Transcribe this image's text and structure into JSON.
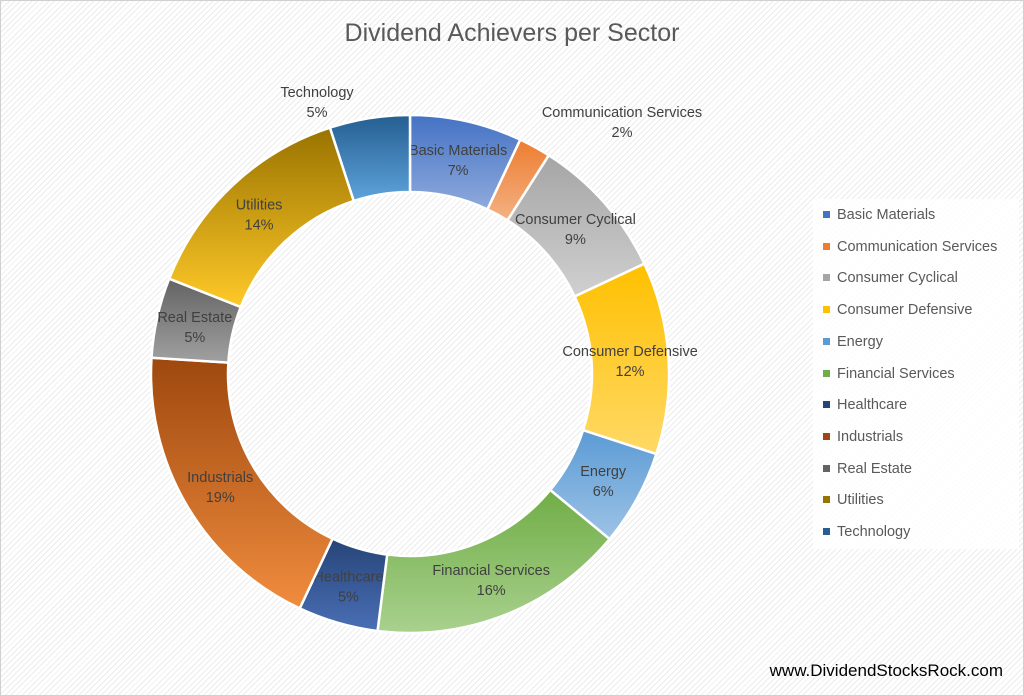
{
  "chart_data": {
    "type": "pie",
    "variant": "donut",
    "title": "Dividend Achievers per Sector",
    "categories": [
      "Basic Materials",
      "Communication Services",
      "Consumer Cyclical",
      "Consumer Defensive",
      "Energy",
      "Financial Services",
      "Healthcare",
      "Industrials",
      "Real Estate",
      "Utilities",
      "Technology"
    ],
    "values": [
      7,
      2,
      9,
      12,
      6,
      16,
      5,
      19,
      5,
      14,
      5
    ],
    "labels": [
      "7%",
      "2%",
      "9%",
      "12%",
      "6%",
      "16%",
      "5%",
      "19%",
      "5%",
      "14%",
      "5%"
    ],
    "colors": [
      "#4472C4",
      "#ED7D31",
      "#A5A5A5",
      "#FFC000",
      "#5B9BD5",
      "#70AD47",
      "#264478",
      "#9E480E",
      "#636363",
      "#997300",
      "#255E91"
    ],
    "colors_light": [
      "#8FAADC",
      "#F4B183",
      "#D0D0D0",
      "#FFD966",
      "#9DC3E6",
      "#A9D18E",
      "#4A6FB5",
      "#F08C3E",
      "#A0A0A0",
      "#FFC928",
      "#5DA3DB"
    ],
    "legend_position": "right"
  },
  "watermark": "www.DividendStocksRock.com"
}
